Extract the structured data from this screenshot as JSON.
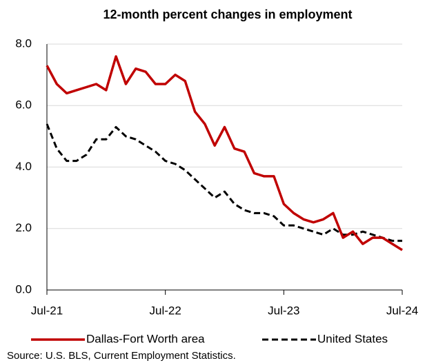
{
  "chart_data": {
    "type": "line",
    "title": "12-month percent changes in employment",
    "source": "Source: U.S. BLS, Current Employment Statistics.",
    "categories": [
      "Jul-21",
      null,
      null,
      null,
      null,
      null,
      null,
      null,
      null,
      null,
      null,
      null,
      "Jul-22",
      null,
      null,
      null,
      null,
      null,
      null,
      null,
      null,
      null,
      null,
      null,
      "Jul-23",
      null,
      null,
      null,
      null,
      null,
      null,
      null,
      null,
      null,
      null,
      null,
      "Jul-24"
    ],
    "series": [
      {
        "name": "Dallas-Fort Worth area",
        "color": "#c00000",
        "dash": false,
        "values": [
          7.3,
          6.7,
          6.4,
          6.5,
          6.6,
          6.7,
          6.5,
          7.6,
          6.7,
          7.2,
          7.1,
          6.7,
          6.7,
          7.0,
          6.8,
          5.8,
          5.4,
          4.7,
          5.3,
          4.6,
          4.5,
          3.8,
          3.7,
          3.7,
          2.8,
          2.5,
          2.3,
          2.2,
          2.3,
          2.5,
          1.7,
          1.9,
          1.5,
          1.7,
          1.7,
          1.5,
          1.3
        ]
      },
      {
        "name": "United States",
        "color": "#000000",
        "dash": true,
        "values": [
          5.4,
          4.6,
          4.2,
          4.2,
          4.4,
          4.9,
          4.9,
          5.3,
          5.0,
          4.9,
          4.7,
          4.5,
          4.2,
          4.1,
          3.9,
          3.6,
          3.3,
          3.0,
          3.2,
          2.8,
          2.6,
          2.5,
          2.5,
          2.4,
          2.1,
          2.1,
          2.0,
          1.9,
          1.8,
          2.0,
          1.8,
          1.8,
          1.9,
          1.8,
          1.7,
          1.6,
          1.6
        ]
      }
    ],
    "ylim": [
      0,
      8
    ],
    "yticks": [
      {
        "value": 0,
        "label": "0.0"
      },
      {
        "value": 2,
        "label": "2.0"
      },
      {
        "value": 4,
        "label": "4.0"
      },
      {
        "value": 6,
        "label": "6.0"
      },
      {
        "value": 8,
        "label": "8.0"
      }
    ],
    "grid": true
  }
}
